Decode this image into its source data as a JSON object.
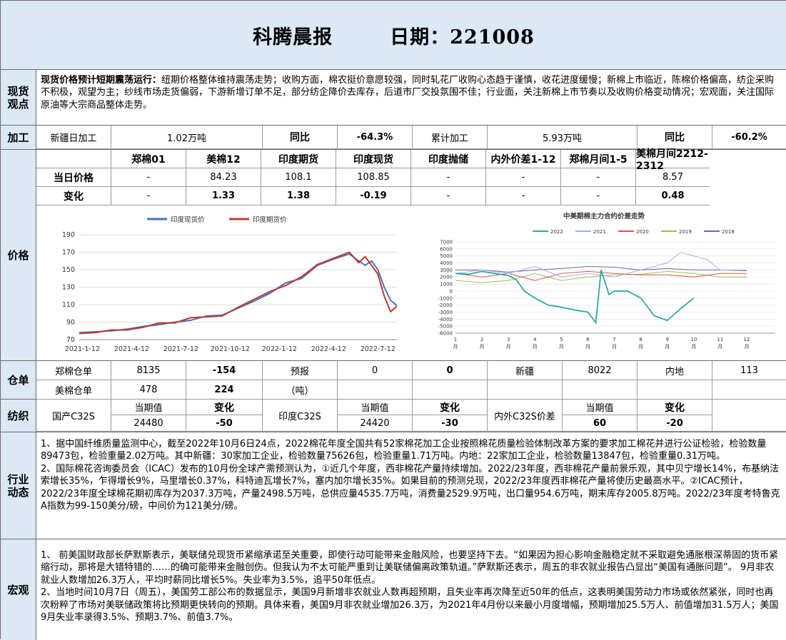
{
  "header": {
    "title": "科腾晨报",
    "date": "日期：221008"
  },
  "spot": {
    "label_1": "现货",
    "label_2": "观点",
    "lead": "现货价格预计短期震荡运行：",
    "text": "纽期价格整体维持震荡走势；收购方面，棉农挺价意愿较强，同时轧花厂收购心态趋于谨慎，收花进度缓慢；新棉上市临近，陈棉价格偏高，纺企采购不积极，观望为主；纱线市场走货偏弱，下游新增订单不足，部分纺企降价去库存，后道市厂交投氛围不佳；行业面，关注新棉上市节奏以及收购价格变动情况；宏观面，关注国际原油等大宗商品整体走势。"
  },
  "processing": {
    "label": "加工",
    "c1": "新疆日加工",
    "c2": "1.02万吨",
    "c3": "同比",
    "c4": "-64.3%",
    "c5": "累计加工",
    "c6": "5.93万吨",
    "c7": "同比",
    "c8": "-60.2%"
  },
  "price": {
    "label": "价格",
    "headers": [
      "郑棉01",
      "美棉12",
      "印度期货",
      "印度现货",
      "印度抛储",
      "内外价差1-12",
      "郑棉月间1-5",
      "美棉月间2212-2312"
    ],
    "row1_label": "当日价格",
    "row1": [
      "-",
      "84.23",
      "108.1",
      "108.85",
      "-",
      "-",
      "-",
      "8.57"
    ],
    "row2_label": "变化",
    "row2": [
      "-",
      "1.33",
      "1.38",
      "-0.19",
      "-",
      "-",
      "-",
      "0.48"
    ]
  },
  "chart_data": [
    {
      "type": "line",
      "title": "",
      "legend": [
        "印度现货价",
        "印度期货价"
      ],
      "legend_placement": "top",
      "x_ticks": [
        "2021-1-12",
        "2021-4-12",
        "2021-7-12",
        "2021-10-12",
        "2022-1-12",
        "2022-4-12",
        "2022-7-12"
      ],
      "y_ticks": [
        70,
        90,
        110,
        130,
        150,
        170,
        190
      ],
      "ylim": [
        70,
        190
      ],
      "grid": true,
      "series": [
        {
          "name": "印度现货价",
          "color": "#4472c4",
          "points": [
            [
              0,
              78
            ],
            [
              0.05,
              79
            ],
            [
              0.1,
              80
            ],
            [
              0.15,
              82
            ],
            [
              0.2,
              85
            ],
            [
              0.25,
              87
            ],
            [
              0.3,
              90
            ],
            [
              0.35,
              92
            ],
            [
              0.4,
              97
            ],
            [
              0.45,
              98
            ],
            [
              0.5,
              106
            ],
            [
              0.55,
              114
            ],
            [
              0.6,
              123
            ],
            [
              0.65,
              135
            ],
            [
              0.7,
              140
            ],
            [
              0.75,
              155
            ],
            [
              0.8,
              162
            ],
            [
              0.85,
              168
            ],
            [
              0.88,
              160
            ],
            [
              0.9,
              155
            ],
            [
              0.92,
              160
            ],
            [
              0.94,
              150
            ],
            [
              0.96,
              130
            ],
            [
              0.98,
              115
            ],
            [
              1.0,
              108.85
            ]
          ]
        },
        {
          "name": "印度期货价",
          "color": "#c0392b",
          "points": [
            [
              0,
              77
            ],
            [
              0.05,
              78
            ],
            [
              0.1,
              81
            ],
            [
              0.15,
              81
            ],
            [
              0.2,
              84
            ],
            [
              0.25,
              89
            ],
            [
              0.3,
              89
            ],
            [
              0.35,
              95
            ],
            [
              0.4,
              96
            ],
            [
              0.45,
              97
            ],
            [
              0.5,
              107
            ],
            [
              0.55,
              116
            ],
            [
              0.6,
              125
            ],
            [
              0.65,
              132
            ],
            [
              0.7,
              142
            ],
            [
              0.75,
              156
            ],
            [
              0.8,
              163
            ],
            [
              0.85,
              170
            ],
            [
              0.88,
              158
            ],
            [
              0.9,
              165
            ],
            [
              0.92,
              155
            ],
            [
              0.94,
              145
            ],
            [
              0.96,
              120
            ],
            [
              0.98,
              102
            ],
            [
              1.0,
              108.1
            ]
          ]
        }
      ]
    },
    {
      "type": "line",
      "title": "中美期棉主力合约价差走势",
      "legend": [
        "2022",
        "2021",
        "2020",
        "2019",
        "2018"
      ],
      "legend_placement": "top",
      "x_ticks": [
        "1\n月",
        "2\n月",
        "3\n月",
        "4\n月",
        "5\n月",
        "6\n月",
        "7\n月",
        "8\n月",
        "9\n月",
        "10\n月",
        "11\n月",
        "12\n月"
      ],
      "y_ticks": [
        7000,
        6000,
        5000,
        4000,
        3000,
        2000,
        1000,
        0,
        -1000,
        -2000,
        -3000,
        -4000,
        -5000,
        -6000
      ],
      "ylim": [
        -6000,
        7000
      ],
      "grid": true,
      "series": [
        {
          "name": "2022",
          "color": "#2ea7a7",
          "points": [
            [
              1,
              2500
            ],
            [
              1.5,
              2400
            ],
            [
              2,
              2800
            ],
            [
              2.5,
              2500
            ],
            [
              3,
              2200
            ],
            [
              3.3,
              1600
            ],
            [
              3.6,
              0
            ],
            [
              4,
              -1000
            ],
            [
              4.5,
              -2000
            ],
            [
              5,
              -2300
            ],
            [
              5.5,
              -2700
            ],
            [
              6,
              -3000
            ],
            [
              6.3,
              -4500
            ],
            [
              6.5,
              3000
            ],
            [
              6.8,
              -500
            ],
            [
              7,
              0
            ],
            [
              7.5,
              0
            ],
            [
              8,
              -1000
            ],
            [
              8.5,
              -3500
            ],
            [
              9,
              -4200
            ],
            [
              9.5,
              -2500
            ],
            [
              10,
              -1000
            ]
          ]
        },
        {
          "name": "2021",
          "color": "#9db4e0",
          "points": [
            [
              1,
              2500
            ],
            [
              2,
              3000
            ],
            [
              3,
              2500
            ],
            [
              4,
              3500
            ],
            [
              5,
              2000
            ],
            [
              6,
              2500
            ],
            [
              7,
              2000
            ],
            [
              8,
              3000
            ],
            [
              9,
              4000
            ],
            [
              9.5,
              5500
            ],
            [
              10,
              5000
            ],
            [
              10.5,
              4500
            ],
            [
              11,
              3000
            ],
            [
              12,
              3000
            ]
          ]
        },
        {
          "name": "2020",
          "color": "#d9534f",
          "points": [
            [
              1,
              2500
            ],
            [
              2,
              2000
            ],
            [
              3,
              2500
            ],
            [
              4,
              1500
            ],
            [
              5,
              2500
            ],
            [
              6,
              2800
            ],
            [
              7,
              2500
            ],
            [
              8,
              2300
            ],
            [
              9,
              2300
            ],
            [
              10,
              2000
            ],
            [
              11,
              2500
            ],
            [
              12,
              2500
            ]
          ]
        },
        {
          "name": "2019",
          "color": "#a8b94c",
          "points": [
            [
              1,
              1500
            ],
            [
              2,
              1200
            ],
            [
              3,
              1500
            ],
            [
              4,
              2500
            ],
            [
              5,
              1500
            ],
            [
              6,
              2000
            ],
            [
              7,
              2300
            ],
            [
              8,
              2400
            ],
            [
              9,
              2800
            ],
            [
              10,
              2500
            ],
            [
              11,
              2000
            ],
            [
              12,
              2000
            ]
          ]
        },
        {
          "name": "2018",
          "color": "#7b5ea7",
          "points": [
            [
              1,
              3000
            ],
            [
              2,
              3000
            ],
            [
              3,
              2700
            ],
            [
              4,
              3000
            ],
            [
              5,
              3200
            ],
            [
              6,
              3500
            ],
            [
              7,
              3400
            ],
            [
              8,
              3000
            ],
            [
              9,
              3200
            ],
            [
              10,
              3000
            ],
            [
              11,
              3000
            ],
            [
              12,
              2900
            ]
          ]
        }
      ]
    }
  ],
  "warehouse": {
    "label": "仓单",
    "r1": [
      "郑棉仓单",
      "8135",
      "-154",
      "预报",
      "0",
      "0",
      "新疆",
      "8022",
      "内地",
      "113"
    ],
    "r2": [
      "美棉仓单",
      "478",
      "224",
      "（吨）"
    ]
  },
  "textile": {
    "label": "纺织",
    "a_name": "国产C32S",
    "a_h1": "当期值",
    "a_h2": "变化",
    "a_v1": "24480",
    "a_v2": "-50",
    "b_name": "印度C32S",
    "b_h1": "当期值",
    "b_h2": "变化",
    "b_v1": "24420",
    "b_v2": "-30",
    "c_name": "内外C32S价差",
    "c_h1": "当期值",
    "c_h2": "变化",
    "c_v1": "60",
    "c_v2": "-20"
  },
  "industry": {
    "label_1": "行业",
    "label_2": "动态",
    "p1": "1、据中国纤维质量监测中心，截至2022年10月6日24点，2022棉花年度全国共有52家棉花加工企业按照棉花质量检验体制改革方案的要求加工棉花并进行公证检验，检验数量89473包，检验重量2.02万吨。其中新疆：30家加工企业，检验数量75626包，检验重量1.71万吨。内地：22家加工企业，检验数量13847包，检验重量0.31万吨。",
    "p2": "2、国际棉花咨询委员会（ICAC）发布的10月份全球产需预测认为，①近几个年度，西非棉花产量持续增加。2022/23年度，西非棉花产量前景乐观，其中贝宁增长14%，布基纳法索增长35%，乍得增长9%，马里增长0.37%，科特迪瓦增长7%，塞内加尔增长35%。如果目前的预测兑现，2022/23年度西非棉花产量将使历史最高水平。②ICAC预计，2022/23年度全球棉花期初库存为2037.3万吨，产量2498.5万吨，总供应量4535.7万吨，消费量2529.9万吨，出口量954.6万吨，期末库存2005.8万吨。2022/23年度考特鲁克A指数为99-150美分/磅，中间价为121美分/磅。"
  },
  "macro": {
    "label": "宏观",
    "p1": "1、 前美国财政部长萨默斯表示，美联储兑现货币紧缩承诺至关重要，即使行动可能带来金融风险，也要坚持下去。“如果因为担心影响金融稳定就不采取避免通胀根深蒂固的货币紧缩行动，那将是大错特错的……的确可能带来金融创伤。但我认为不太可能严重到让美联储偏离政策轨道。”萨默斯还表示，周五的非农就业报告凸显出“美国有通胀问题”。 9月非农就业人数增加26.3万人，平均时薪同比增长5%。失业率为3.5%，追平50年低点。",
    "p2": "2、当地时间10月7日（周五），美国劳工部公布的数据显示，美国9月新增非农就业人数再超预期，且失业率再次降至近50年的低点，这表明美国劳动力市场或依然紧张，同时也再次粉粹了市场对美联储政策将比预期更快转向的预期。具体来看，美国9月非农就业增加26.3万，为2021年4月份以来最小月度增幅，预期增加25.5万人、前值增加31.5万人；美国9月失业率录得3.5%、预期3.7%、前值3.7%。"
  }
}
